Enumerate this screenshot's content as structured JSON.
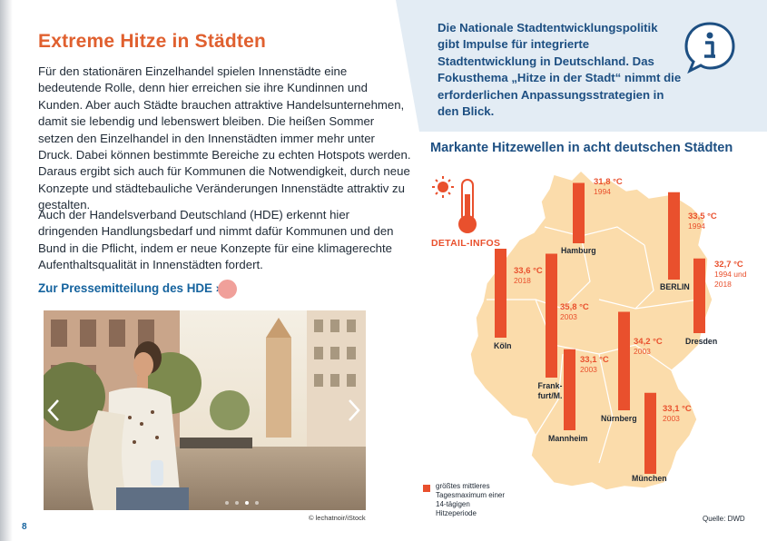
{
  "article": {
    "title": "Extreme Hitze in Städten",
    "paragraph1": "Für den stationären Einzelhandel spielen Innenstädte eine bedeutende Rolle, denn hier erreichen sie ihre Kundinnen und Kunden. Aber auch Städte brauchen attraktive Handelsunternehmen, damit sie lebendig und lebenswert bleiben. Die heißen Sommer setzen den Einzelhandel in den Innenstädten immer mehr unter Druck. Dabei können bestimmte Bereiche zu echten Hotspots werden. Daraus ergibt sich auch für Kommunen die Notwendigkeit, durch neue Konzepte und städtebauliche Veränderungen Innenstädte attraktiv zu gestalten.",
    "paragraph2": "Auch der Handelsverband Deutschland (HDE) erkennt hier dringenden Handlungsbedarf und nimmt dafür Kommunen und den Bund in die Pflicht, indem er neue Konzepte für eine klimagerechte Aufenthalts­qualität in Innenstädten fordert.",
    "link": "Zur Pressemitteilung des HDE ›",
    "photo_credit": "© lechatnoir/iStock",
    "page_number": "8"
  },
  "info_box": {
    "text": "Die Nationale Stadtentwicklungspolitik gibt Impulse für integrierte Stadtentwicklung in Deutschland. Das Fokusthema „Hitze in der Stadt“ nimmt die erforderlichen Anpassungs­strategien in den Blick.",
    "icon": "info-speech-bubble-icon"
  },
  "map": {
    "title": "Markante Hitzewellen in acht deutschen Städten",
    "detail_label": "DETAIL-INFOS",
    "legend": "größtes mittleres Tagesmaximum einer 14-tägigen Hitzeperiode",
    "source": "Quelle: DWD",
    "colors": {
      "bar": "#e9502d",
      "land": "#fbdcab",
      "accent": "#e0602f",
      "blue": "#1d4f82"
    }
  },
  "chart_data": {
    "type": "bar",
    "categories": [
      "Hamburg",
      "BERLIN",
      "Köln",
      "Dresden",
      "Frank-furt/M.",
      "Nürnberg",
      "Mannheim",
      "München"
    ],
    "values": [
      31.8,
      33.5,
      33.6,
      32.7,
      35.8,
      34.2,
      33.1,
      33.1
    ],
    "temps": [
      "31,8 °C",
      "33,5 °C",
      "33,6 °C",
      "32,7 °C",
      "35,8 °C",
      "34,2 °C",
      "33,1 °C",
      "33,1 °C"
    ],
    "years": [
      "1994",
      "1994",
      "2018",
      "1994 und 2018",
      "2003",
      "2003",
      "2003",
      "2003"
    ],
    "title": "Markante Hitzewellen in acht deutschen Städten",
    "unit": "°C"
  }
}
